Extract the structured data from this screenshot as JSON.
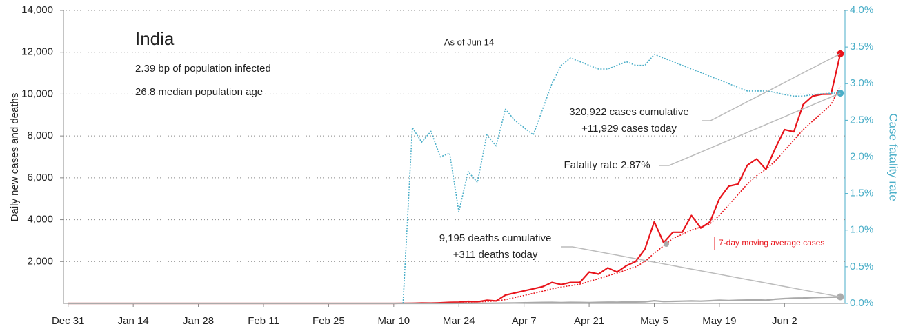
{
  "chart_data": {
    "type": "line",
    "title": "India",
    "subtitle_lines": [
      "2.39 bp of population infected",
      "26.8 median population age"
    ],
    "note": "As of Jun 14",
    "ylabel": "Daily new cases and deaths",
    "y2label": "Case fatality rate",
    "x": [
      0,
      14,
      28,
      42,
      56,
      70,
      72,
      74,
      76,
      78,
      80,
      82,
      84,
      86,
      88,
      90,
      92,
      94,
      96,
      98,
      100,
      102,
      104,
      106,
      108,
      110,
      112,
      114,
      116,
      118,
      120,
      122,
      124,
      126,
      128,
      130,
      132,
      134,
      136,
      138,
      140,
      142,
      144,
      146,
      148,
      150,
      152,
      154,
      156,
      158,
      160,
      162,
      164,
      166
    ],
    "xlim": [
      -1,
      167
    ],
    "xticks": [
      {
        "value": 0,
        "label": "Dec 31"
      },
      {
        "value": 14,
        "label": "Jan 14"
      },
      {
        "value": 28,
        "label": "Jan 28"
      },
      {
        "value": 42,
        "label": "Feb 11"
      },
      {
        "value": 56,
        "label": "Feb 25"
      },
      {
        "value": 70,
        "label": "Mar 10"
      },
      {
        "value": 84,
        "label": "Mar 24"
      },
      {
        "value": 98,
        "label": "Apr 7"
      },
      {
        "value": 112,
        "label": "Apr 21"
      },
      {
        "value": 126,
        "label": "May 5"
      },
      {
        "value": 140,
        "label": "May 19"
      },
      {
        "value": 154,
        "label": "Jun 2"
      }
    ],
    "ylim": [
      0,
      14000
    ],
    "yticks": [
      {
        "value": 2000,
        "label": "2,000"
      },
      {
        "value": 4000,
        "label": "4,000"
      },
      {
        "value": 6000,
        "label": "6,000"
      },
      {
        "value": 8000,
        "label": "8,000"
      },
      {
        "value": 10000,
        "label": "10,000"
      },
      {
        "value": 12000,
        "label": "12,000"
      },
      {
        "value": 14000,
        "label": "14,000"
      }
    ],
    "y2lim": [
      0,
      4.0
    ],
    "y2ticks": [
      {
        "value": 0,
        "label": "0.0%"
      },
      {
        "value": 0.5,
        "label": "0.5%"
      },
      {
        "value": 1.0,
        "label": "1.0%"
      },
      {
        "value": 1.5,
        "label": "1.5%"
      },
      {
        "value": 2.0,
        "label": "2.0%"
      },
      {
        "value": 2.5,
        "label": "2.5%"
      },
      {
        "value": 3.0,
        "label": "3.0%"
      },
      {
        "value": 3.5,
        "label": "3.5%"
      },
      {
        "value": 4.0,
        "label": "4.0%"
      }
    ],
    "grid": true,
    "series": [
      {
        "color": "#e8141b",
        "style": "solid",
        "endpoint": true,
        "values": [
          0,
          0,
          0,
          0,
          0,
          0,
          5,
          10,
          20,
          15,
          30,
          50,
          60,
          100,
          80,
          150,
          120,
          400,
          500,
          600,
          700,
          800,
          1000,
          900,
          1000,
          1000,
          1500,
          1400,
          1700,
          1500,
          1800,
          2000,
          2600,
          3900,
          2900,
          3400,
          3400,
          4200,
          3600,
          3900,
          5000,
          5600,
          5700,
          6600,
          6900,
          6400,
          7400,
          8300,
          8200,
          9500,
          9900,
          9990,
          10000,
          11929
        ]
      },
      {
        "name": "7-day moving average cases",
        "color": "#e8141b",
        "style": "dotted",
        "values": [
          0,
          0,
          0,
          0,
          0,
          0,
          3,
          6,
          10,
          14,
          20,
          30,
          45,
          60,
          75,
          90,
          120,
          180,
          280,
          380,
          480,
          580,
          700,
          780,
          850,
          920,
          1050,
          1180,
          1320,
          1450,
          1600,
          1750,
          2000,
          2400,
          2750,
          3100,
          3300,
          3500,
          3650,
          3800,
          4200,
          4700,
          5200,
          5700,
          6100,
          6400,
          6800,
          7300,
          7800,
          8300,
          8700,
          9100,
          9500,
          10400
        ]
      },
      {
        "color": "#aaaaaa",
        "style": "solid",
        "endpoint": true,
        "values": [
          0,
          0,
          0,
          0,
          0,
          0,
          0,
          0,
          0,
          0,
          0,
          0,
          2,
          4,
          5,
          8,
          10,
          15,
          20,
          30,
          40,
          45,
          50,
          40,
          50,
          45,
          40,
          50,
          60,
          55,
          70,
          70,
          80,
          130,
          90,
          100,
          110,
          120,
          110,
          130,
          150,
          140,
          150,
          160,
          170,
          150,
          200,
          230,
          250,
          260,
          280,
          290,
          300,
          311
        ]
      },
      {
        "color": "#4aaec8",
        "style": "dotted",
        "axis": "y2",
        "endpoint": true,
        "values": [
          null,
          null,
          null,
          null,
          null,
          null,
          0,
          2.4,
          2.2,
          2.35,
          2.0,
          2.05,
          1.25,
          1.8,
          1.65,
          2.3,
          2.15,
          2.65,
          2.5,
          2.4,
          2.3,
          2.65,
          3.0,
          3.25,
          3.35,
          3.3,
          3.25,
          3.2,
          3.2,
          3.25,
          3.3,
          3.25,
          3.25,
          3.4,
          3.35,
          3.3,
          3.25,
          3.2,
          3.15,
          3.1,
          3.05,
          3.0,
          2.95,
          2.9,
          2.9,
          2.9,
          2.88,
          2.85,
          2.83,
          2.83,
          2.85,
          2.86,
          2.87,
          2.87
        ]
      }
    ],
    "annotations": [
      "320,922 cases cumulative",
      "+11,929 cases today",
      "Fatality rate 2.87%",
      "9,195 deaths cumulative",
      "+311 deaths today"
    ]
  }
}
